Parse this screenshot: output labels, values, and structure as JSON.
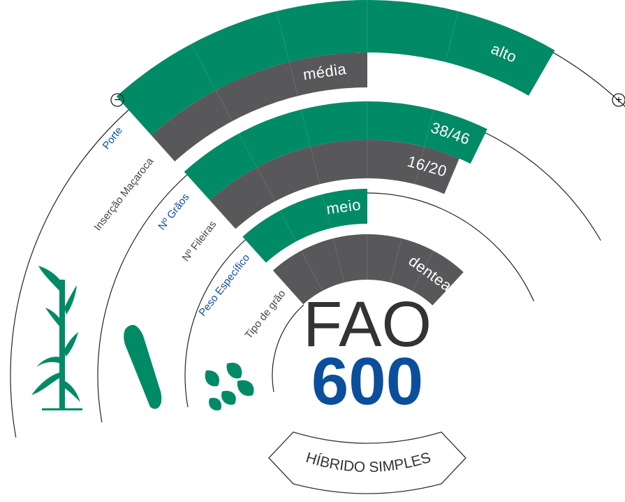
{
  "scale": {
    "min": "−",
    "max": "+"
  },
  "bands": [
    {
      "label": "Porte",
      "value": "alto"
    },
    {
      "label": "Inserção Maçaroca",
      "value": "média"
    },
    {
      "label": "Nº Grãos",
      "value": "38/46"
    },
    {
      "label": "Nº Fileiras",
      "value": "16/20"
    },
    {
      "label": "Peso Específico",
      "value": "meio"
    },
    {
      "label": "Tipo de grão",
      "value": "denteado"
    }
  ],
  "product": {
    "prefix": "FAO",
    "number": "600",
    "type": "HÍBRIDO SIMPLES"
  }
}
